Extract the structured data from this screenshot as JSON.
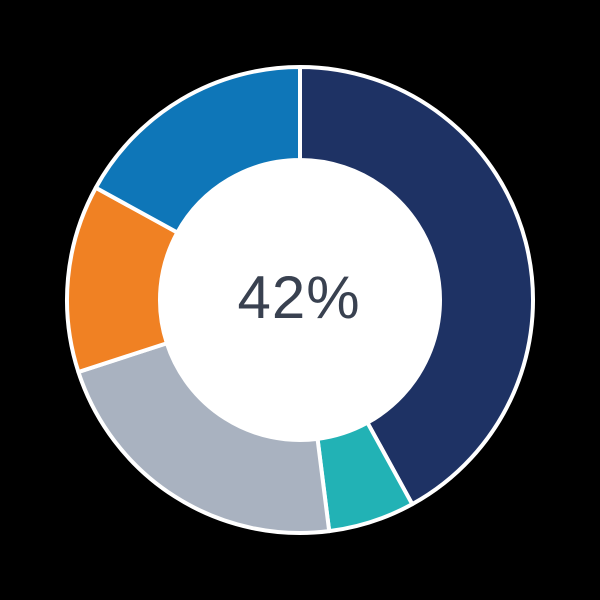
{
  "chart_data": {
    "type": "pie",
    "subtype": "donut",
    "title": "",
    "center_label": "42%",
    "segments": [
      {
        "name": "navy",
        "value": 42,
        "color": "#1e3264"
      },
      {
        "name": "teal",
        "value": 6,
        "color": "#22b2b5"
      },
      {
        "name": "gray",
        "value": 22,
        "color": "#a9b2c0"
      },
      {
        "name": "orange",
        "value": 13,
        "color": "#f08123"
      },
      {
        "name": "light-blue",
        "value": 17,
        "color": "#0e76b8"
      }
    ],
    "layout": {
      "legend": "none",
      "start_angle_deg": 0,
      "direction": "clockwise",
      "background_color": "#000000",
      "hole_color": "#ffffff",
      "divider_color": "#ffffff",
      "center_label_color": "#394150"
    }
  }
}
